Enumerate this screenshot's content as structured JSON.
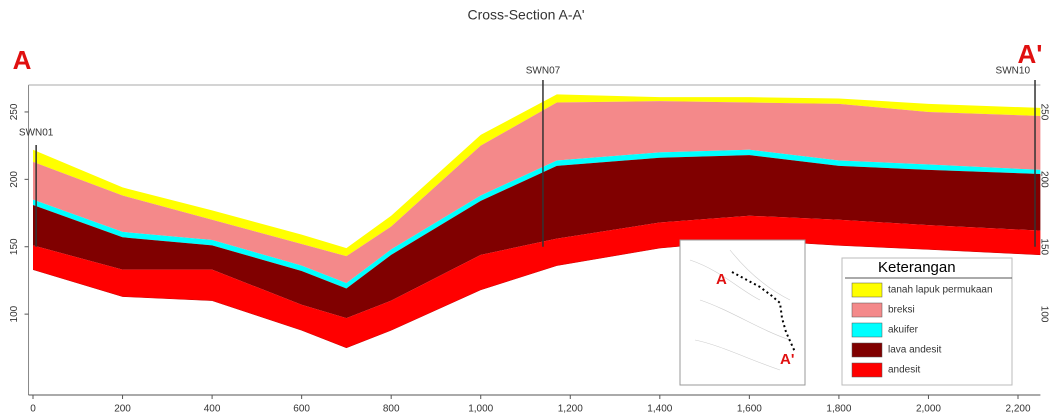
{
  "chart_data": {
    "type": "cross-section",
    "title": "Cross-Section A-A'",
    "section_start": "A",
    "section_end": "A'",
    "x": [
      0,
      200,
      400,
      600,
      700,
      800,
      1000,
      1170,
      1400,
      1600,
      1800,
      2000,
      2250
    ],
    "series": [
      {
        "name": "tanah lapuk permukaan",
        "color": "#ffff00",
        "values": [
          222,
          194,
          177,
          159,
          149,
          173,
          233,
          263,
          261,
          261,
          260,
          256,
          253
        ]
      },
      {
        "name": "breksi",
        "color": "#f4898a",
        "values": [
          213,
          188,
          170,
          152,
          143,
          165,
          225,
          257,
          258,
          257,
          256,
          250,
          247
        ]
      },
      {
        "name": "akuifer",
        "color": "#00ffff",
        "values": [
          185,
          161,
          155,
          136,
          123,
          148,
          188,
          214,
          220,
          222,
          214,
          211,
          207
        ]
      },
      {
        "name": "lava andesit",
        "color": "#800000",
        "values": [
          181,
          157,
          151,
          132,
          119,
          144,
          184,
          210,
          216,
          218,
          210,
          207,
          204
        ]
      },
      {
        "name": "andesit",
        "color": "#ff0000",
        "values": [
          151,
          133,
          133,
          107,
          97,
          110,
          144,
          156,
          168,
          173,
          170,
          166,
          162
        ]
      }
    ],
    "base_values": [
      133,
      113,
      110,
      88,
      75,
      88,
      118,
      136,
      149,
      155,
      151,
      148,
      144
    ],
    "wells": [
      {
        "name": "SWN01",
        "x": 7
      },
      {
        "name": "SWN07",
        "x": 1139
      },
      {
        "name": "SWN10",
        "x": 2238
      }
    ],
    "legend_title": "Keterangan",
    "xlim": [
      -10,
      2250
    ],
    "ylim": [
      40,
      270
    ],
    "xticks": [
      0,
      200,
      400,
      600,
      800,
      {
        "value": 1000,
        "label": "1,000"
      },
      {
        "value": 1200,
        "label": "1,200"
      },
      {
        "value": 1400,
        "label": "1,400"
      },
      {
        "value": 1600,
        "label": "1,600"
      },
      {
        "value": 1800,
        "label": "1,800"
      },
      {
        "value": 2000,
        "label": "2,000"
      },
      {
        "value": 2200,
        "label": "2,200"
      }
    ],
    "yticks": [
      100,
      150,
      200,
      250
    ]
  }
}
